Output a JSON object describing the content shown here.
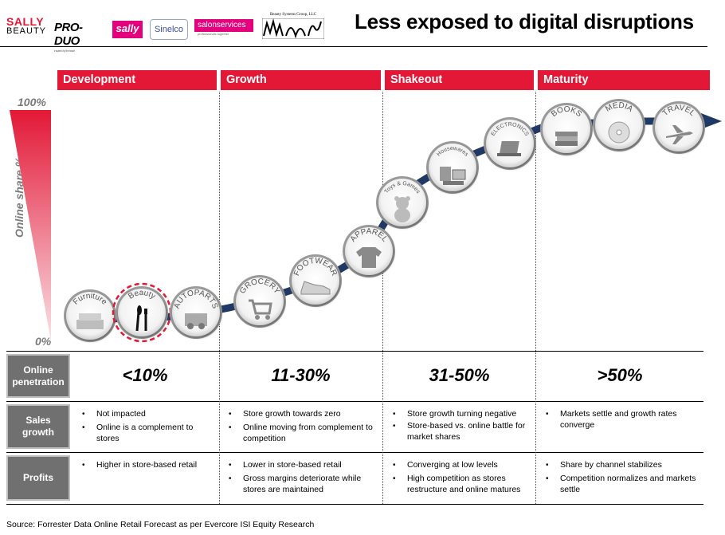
{
  "header": {
    "title": "Less exposed to digital disruptions",
    "logos": {
      "sally_beauty_line1": "SALLY",
      "sally_beauty_line2": "BEAUTY",
      "produo": "PRO-DUO",
      "produo_tagline": "inspired by the trade",
      "sally_small": "sally",
      "sinelco": "Sinelco",
      "salon_services": "salonservices",
      "salon_services_tagline": "professionals together",
      "bsg": "Beauty Systems Group, LLC"
    }
  },
  "phases": [
    {
      "label": "Development"
    },
    {
      "label": "Growth"
    },
    {
      "label": "Shakeout"
    },
    {
      "label": "Maturity"
    }
  ],
  "y_axis": {
    "title": "Online share %",
    "top": "100%",
    "bottom": "0%"
  },
  "categories": [
    {
      "label": "Furniture",
      "icon": "sofa-icon",
      "highlight": false
    },
    {
      "label": "Beauty",
      "icon": "makeup-brush-icon",
      "highlight": true
    },
    {
      "label": "AUTOPARTS",
      "icon": "car-parts-icon",
      "highlight": false
    },
    {
      "label": "GROCERY",
      "icon": "shopping-cart-icon",
      "highlight": false
    },
    {
      "label": "FOOTWEAR",
      "icon": "sneaker-icon",
      "highlight": false
    },
    {
      "label": "APPAREL",
      "icon": "tshirt-icon",
      "highlight": false
    },
    {
      "label": "Toys & Games",
      "icon": "teddy-bear-icon",
      "highlight": false
    },
    {
      "label": "Housewares",
      "icon": "kitchen-appliances-icon",
      "highlight": false
    },
    {
      "label": "ELECTRONICS",
      "icon": "laptop-icon",
      "highlight": false
    },
    {
      "label": "BOOKS",
      "icon": "books-icon",
      "highlight": false
    },
    {
      "label": "MEDIA",
      "icon": "cd-icon",
      "highlight": false
    },
    {
      "label": "TRAVEL",
      "icon": "airplane-icon",
      "highlight": false
    }
  ],
  "colors": {
    "accent": "#e21836",
    "curve": "#1f3864",
    "row_head": "#707070",
    "highlight_ring": "#e21836"
  },
  "table": {
    "rows": [
      {
        "header": [
          "Online",
          "penetration"
        ],
        "cells": [
          "<10%",
          "11-30%",
          "31-50%",
          ">50%"
        ]
      },
      {
        "header": [
          "Sales",
          "growth"
        ],
        "cells": [
          [
            "Not impacted",
            "Online is a complement to stores"
          ],
          [
            "Store growth towards zero",
            "Online moving from complement to competition"
          ],
          [
            "Store growth turning negative",
            "Store-based vs. online battle for market shares"
          ],
          [
            "Markets settle and growth rates converge"
          ]
        ]
      },
      {
        "header": [
          "Profits"
        ],
        "cells": [
          [
            "Higher in store-based retail"
          ],
          [
            "Lower in store-based retail",
            "Gross margins deteriorate while stores are maintained"
          ],
          [
            "Converging at low levels",
            "High competition as stores restructure and online matures"
          ],
          [
            "Share by channel stabilizes",
            "Competition normalizes and markets settle"
          ]
        ]
      }
    ]
  },
  "source": "Source: Forrester Data Online Retail Forecast as per Evercore ISI Equity Research"
}
